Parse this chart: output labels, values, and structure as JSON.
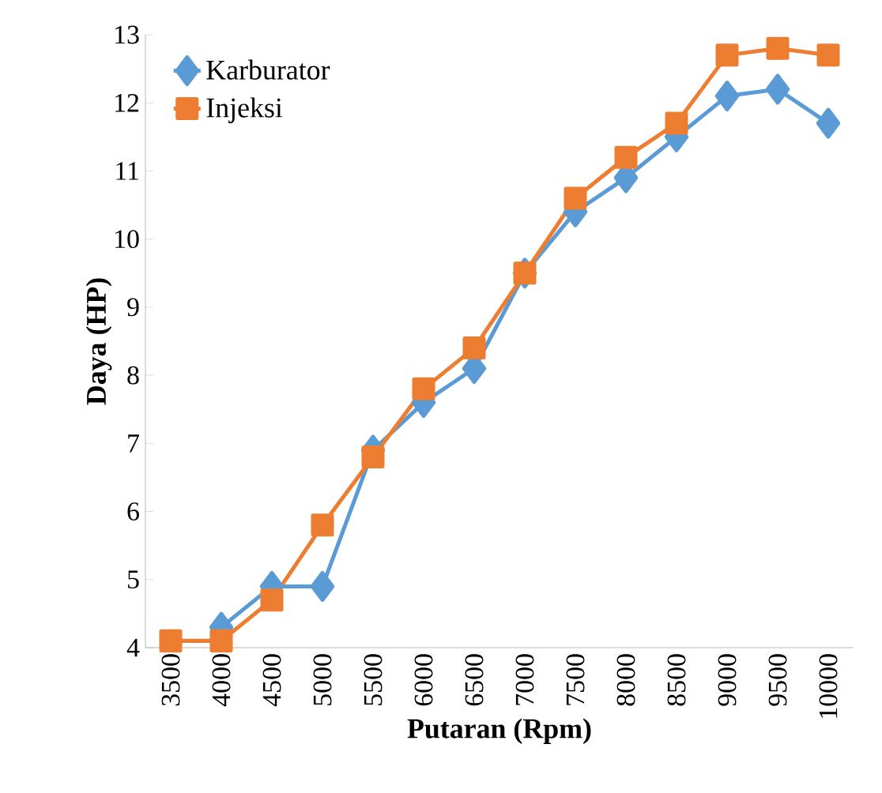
{
  "chart_data": {
    "type": "line",
    "xlabel": "Putaran (Rpm)",
    "ylabel": "Daya (HP)",
    "categories": [
      "3500",
      "4000",
      "4500",
      "5000",
      "5500",
      "6000",
      "6500",
      "7000",
      "7500",
      "8000",
      "8500",
      "9000",
      "9500",
      "10000"
    ],
    "series": [
      {
        "name": "Karburator",
        "color": "#5b9bd5",
        "marker": "diamond",
        "values": [
          null,
          4.3,
          4.9,
          4.9,
          6.9,
          7.6,
          8.1,
          9.5,
          10.4,
          10.9,
          11.5,
          12.1,
          12.2,
          11.7
        ]
      },
      {
        "name": "Injeksi",
        "color": "#ed7d31",
        "marker": "square",
        "values": [
          4.1,
          4.1,
          4.7,
          5.8,
          6.8,
          7.8,
          8.4,
          9.5,
          10.6,
          11.2,
          11.7,
          12.7,
          12.8,
          12.7
        ]
      }
    ],
    "ylim": [
      4,
      13
    ],
    "yticks": [
      4,
      5,
      6,
      7,
      8,
      9,
      10,
      11,
      12,
      13
    ],
    "grid": false,
    "legend": "top left",
    "line_style": "solid"
  }
}
